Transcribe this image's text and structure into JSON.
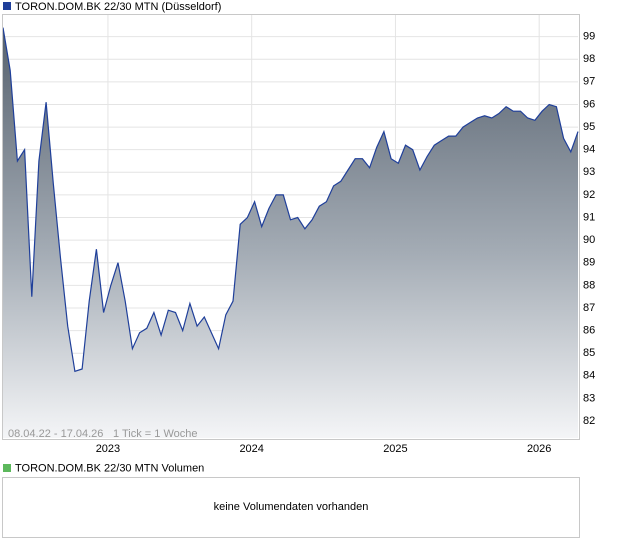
{
  "chart_data": {
    "type": "area",
    "series": [
      {
        "name": "TORON.DOM.BK 22/30 MTN (Düsseldorf)",
        "color": "#1f3f9a",
        "values": [
          99.4,
          97.5,
          93.5,
          94,
          87.5,
          93.5,
          96.1,
          92.5,
          89.2,
          86.2,
          84.2,
          84.3,
          87.3,
          89.6,
          86.8,
          88,
          89,
          87.3,
          85.2,
          85.9,
          86.1,
          86.8,
          85.8,
          86.9,
          86.8,
          86,
          87.2,
          86.2,
          86.6,
          85.9,
          85.2,
          86.7,
          87.3,
          90.7,
          91,
          91.7,
          90.6,
          91.4,
          92,
          92,
          90.9,
          91,
          90.5,
          90.9,
          91.5,
          91.7,
          92.4,
          92.6,
          93.1,
          93.6,
          93.6,
          93.2,
          94.1,
          94.8,
          93.6,
          93.4,
          94.2,
          94,
          93.1,
          93.7,
          94.2,
          94.4,
          94.6,
          94.6,
          95,
          95.2,
          95.4,
          95.5,
          95.4,
          95.6,
          95.9,
          95.7,
          95.7,
          95.4,
          95.3,
          95.7,
          96,
          95.9,
          94.5,
          93.9,
          94.8
        ]
      }
    ],
    "x": [
      2022.27,
      2022.32,
      2022.37,
      2022.42,
      2022.47,
      2022.52,
      2022.57,
      2022.62,
      2022.67,
      2022.72,
      2022.77,
      2022.82,
      2022.87,
      2022.92,
      2022.97,
      2023.02,
      2023.07,
      2023.12,
      2023.17,
      2023.22,
      2023.27,
      2023.32,
      2023.37,
      2023.42,
      2023.47,
      2023.52,
      2023.57,
      2023.62,
      2023.67,
      2023.72,
      2023.77,
      2023.82,
      2023.87,
      2023.92,
      2023.97,
      2024.02,
      2024.07,
      2024.12,
      2024.17,
      2024.22,
      2024.27,
      2024.32,
      2024.37,
      2024.42,
      2024.47,
      2024.52,
      2024.57,
      2024.62,
      2024.67,
      2024.72,
      2024.77,
      2024.82,
      2024.87,
      2024.92,
      2024.97,
      2025.02,
      2025.07,
      2025.12,
      2025.17,
      2025.22,
      2025.27,
      2025.32,
      2025.37,
      2025.42,
      2025.47,
      2025.52,
      2025.57,
      2025.62,
      2025.67,
      2025.72,
      2025.77,
      2025.82,
      2025.87,
      2025.92,
      2025.97,
      2026.02,
      2026.07,
      2026.12,
      2026.17,
      2026.22,
      2026.27
    ],
    "xlim": [
      2022.27,
      2026.27
    ],
    "xticks": [
      2023,
      2024,
      2025,
      2026
    ],
    "ylim": [
      81.25,
      100
    ],
    "yticks": [
      82,
      83,
      84,
      85,
      86,
      87,
      88,
      89,
      90,
      91,
      92,
      93,
      94,
      95,
      96,
      97,
      98,
      99
    ],
    "grid": true,
    "annotations": [
      "08.04.22 - 17.04.26",
      "1 Tick = 1 Woche"
    ]
  },
  "volume_panel": {
    "legend": "TORON.DOM.BK 22/30 MTN Volumen",
    "color": "#5cb85c",
    "message": "keine Volumendaten vorhanden"
  }
}
